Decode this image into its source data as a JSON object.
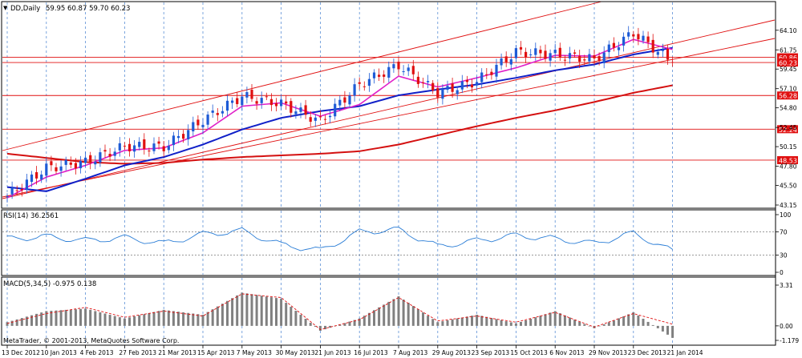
{
  "header": {
    "symbol_label": "DD,Daily",
    "ohlc_values": "59.95 60.87 59.70 60.23",
    "dropdown_glyph": "▼"
  },
  "rsi_panel": {
    "label": "RSI(14) 36.2561",
    "levels": [
      "100",
      "70",
      "30",
      "0"
    ]
  },
  "macd_panel": {
    "label": "MACD(5,34,5) -0.975 0.138",
    "levels": [
      "3.31",
      "0.00",
      "-1.179"
    ]
  },
  "copyright": "MetaTrader, © 2001-2013, MetaQuotes Software Corp.",
  "colors": {
    "background": "#ffffff",
    "grid_line": "#5b8fd6",
    "candle_up": "#1e5bd6",
    "candle_down": "#e01010",
    "ma_fast": "#e020c8",
    "ma_mid": "#1020c8",
    "ma_slow": "#d41010",
    "support_resistance": "#e01010",
    "rsi_line": "#2a7dd6",
    "macd_hist": "#808080",
    "macd_signal": "#e01010",
    "axis_text": "#000000",
    "price_tag_bg": "#e01010"
  },
  "chart_data": [
    {
      "type": "candlestick",
      "title": "DD,Daily",
      "x_tick_labels": [
        "13 Dec 2012",
        "10 Jan 2013",
        "4 Feb 2013",
        "27 Feb 2013",
        "21 Mar 2013",
        "15 Apr 2013",
        "7 May 2013",
        "30 May 2013",
        "21 Jun 2013",
        "16 Jul 2013",
        "7 Aug 2013",
        "29 Aug 2013",
        "23 Sep 2013",
        "15 Oct 2013",
        "6 Nov 2013",
        "29 Nov 2013",
        "23 Dec 2013",
        "21 Jan 2014"
      ],
      "y_tick_labels": [
        "64.10",
        "61.75",
        "59.45",
        "57.10",
        "54.80",
        "52.45",
        "50.15",
        "47.80",
        "45.50",
        "43.15"
      ],
      "ylim": [
        43.15,
        66.0
      ],
      "horizontal_levels": [
        "60.86",
        "60.23",
        "56.28",
        "52.24",
        "48.53"
      ],
      "current_price": "60.23",
      "series": [
        {
          "name": "price",
          "x": [
            "13 Dec 2012",
            "10 Jan 2013",
            "4 Feb 2013",
            "27 Feb 2013",
            "21 Mar 2013",
            "15 Apr 2013",
            "7 May 2013",
            "30 May 2013",
            "21 Jun 2013",
            "16 Jul 2013",
            "7 Aug 2013",
            "29 Aug 2013",
            "23 Sep 2013",
            "15 Oct 2013",
            "6 Nov 2013",
            "29 Nov 2013",
            "23 Dec 2013",
            "21 Jan 2014"
          ],
          "y": [
            44.2,
            47.6,
            48.3,
            50.2,
            50.1,
            53.3,
            56.2,
            55.3,
            53.2,
            57.6,
            59.9,
            56.6,
            58.0,
            61.5,
            61.2,
            60.6,
            63.8,
            60.23
          ]
        },
        {
          "name": "ma_fast",
          "x": [
            "13 Dec 2012",
            "10 Jan 2013",
            "4 Feb 2013",
            "27 Feb 2013",
            "21 Mar 2013",
            "15 Apr 2013",
            "7 May 2013",
            "30 May 2013",
            "21 Jun 2013",
            "16 Jul 2013",
            "7 Aug 2013",
            "29 Aug 2013",
            "23 Sep 2013",
            "15 Oct 2013",
            "6 Nov 2013",
            "29 Nov 2013",
            "23 Dec 2013",
            "21 Jan 2014"
          ],
          "y": [
            44.0,
            46.5,
            47.9,
            49.7,
            50.0,
            51.8,
            55.0,
            55.4,
            53.8,
            55.2,
            58.6,
            57.3,
            58.4,
            59.6,
            61.1,
            61.0,
            63.0,
            61.8
          ]
        },
        {
          "name": "ma_mid",
          "x": [
            "13 Dec 2012",
            "10 Jan 2013",
            "4 Feb 2013",
            "27 Feb 2013",
            "21 Mar 2013",
            "15 Apr 2013",
            "7 May 2013",
            "30 May 2013",
            "21 Jun 2013",
            "16 Jul 2013",
            "7 Aug 2013",
            "29 Aug 2013",
            "23 Sep 2013",
            "15 Oct 2013",
            "6 Nov 2013",
            "29 Nov 2013",
            "23 Dec 2013",
            "21 Jan 2014"
          ],
          "y": [
            45.3,
            44.8,
            46.3,
            47.9,
            48.9,
            50.4,
            52.2,
            53.6,
            54.4,
            55.0,
            56.3,
            57.0,
            57.6,
            58.4,
            59.3,
            60.0,
            61.2,
            62.0
          ]
        },
        {
          "name": "ma_slow",
          "x": [
            "13 Dec 2012",
            "10 Jan 2013",
            "4 Feb 2013",
            "27 Feb 2013",
            "21 Mar 2013",
            "15 Apr 2013",
            "7 May 2013",
            "30 May 2013",
            "21 Jun 2013",
            "16 Jul 2013",
            "7 Aug 2013",
            "29 Aug 2013",
            "23 Sep 2013",
            "15 Oct 2013",
            "6 Nov 2013",
            "29 Nov 2013",
            "23 Dec 2013",
            "21 Jan 2014"
          ],
          "y": [
            49.3,
            48.8,
            48.3,
            48.1,
            48.2,
            48.6,
            48.9,
            49.1,
            49.3,
            49.6,
            50.4,
            51.5,
            52.6,
            53.6,
            54.5,
            55.5,
            56.6,
            57.5
          ]
        }
      ]
    },
    {
      "type": "line",
      "title": "RSI(14) 36.2561",
      "x_tick_labels": [
        "13 Dec 2012",
        "10 Jan 2013",
        "4 Feb 2013",
        "27 Feb 2013",
        "21 Mar 2013",
        "15 Apr 2013",
        "7 May 2013",
        "30 May 2013",
        "21 Jun 2013",
        "16 Jul 2013",
        "7 Aug 2013",
        "29 Aug 2013",
        "23 Sep 2013",
        "15 Oct 2013",
        "6 Nov 2013",
        "29 Nov 2013",
        "23 Dec 2013",
        "21 Jan 2014"
      ],
      "y_tick_labels": [
        "100",
        "70",
        "30",
        "0"
      ],
      "ylim": [
        0,
        100
      ],
      "levels": [
        70,
        30
      ],
      "series": [
        {
          "name": "RSI(14)",
          "x": [
            "13 Dec 2012",
            "10 Jan 2013",
            "4 Feb 2013",
            "27 Feb 2013",
            "21 Mar 2013",
            "15 Apr 2013",
            "7 May 2013",
            "30 May 2013",
            "21 Jun 2013",
            "16 Jul 2013",
            "7 Aug 2013",
            "29 Aug 2013",
            "23 Sep 2013",
            "15 Oct 2013",
            "6 Nov 2013",
            "29 Nov 2013",
            "23 Dec 2013",
            "21 Jan 2014"
          ],
          "y": [
            58,
            62,
            55,
            60,
            50,
            66,
            72,
            48,
            38,
            70,
            74,
            45,
            55,
            64,
            58,
            50,
            68,
            36.26
          ]
        }
      ]
    },
    {
      "type": "bar",
      "title": "MACD(5,34,5) -0.975 0.138",
      "x_tick_labels": [
        "13 Dec 2012",
        "10 Jan 2013",
        "4 Feb 2013",
        "27 Feb 2013",
        "21 Mar 2013",
        "15 Apr 2013",
        "7 May 2013",
        "30 May 2013",
        "21 Jun 2013",
        "16 Jul 2013",
        "7 Aug 2013",
        "29 Aug 2013",
        "23 Sep 2013",
        "15 Oct 2013",
        "6 Nov 2013",
        "29 Nov 2013",
        "23 Dec 2013",
        "21 Jan 2014"
      ],
      "y_tick_labels": [
        "3.31",
        "0.00",
        "-1.179"
      ],
      "ylim": [
        -1.179,
        3.31
      ],
      "series": [
        {
          "name": "MACD",
          "x": [
            "13 Dec 2012",
            "10 Jan 2013",
            "4 Feb 2013",
            "27 Feb 2013",
            "21 Mar 2013",
            "15 Apr 2013",
            "7 May 2013",
            "30 May 2013",
            "21 Jun 2013",
            "16 Jul 2013",
            "7 Aug 2013",
            "29 Aug 2013",
            "23 Sep 2013",
            "15 Oct 2013",
            "6 Nov 2013",
            "29 Nov 2013",
            "23 Dec 2013",
            "21 Jan 2014"
          ],
          "y": [
            0.3,
            1.2,
            1.4,
            0.6,
            1.3,
            0.9,
            2.7,
            2.2,
            -0.4,
            0.6,
            2.4,
            0.3,
            0.9,
            0.2,
            1.2,
            -0.2,
            1.1,
            -0.975
          ]
        },
        {
          "name": "Signal",
          "x": [
            "13 Dec 2012",
            "10 Jan 2013",
            "4 Feb 2013",
            "27 Feb 2013",
            "21 Mar 2013",
            "15 Apr 2013",
            "7 May 2013",
            "30 May 2013",
            "21 Jun 2013",
            "16 Jul 2013",
            "7 Aug 2013",
            "29 Aug 2013",
            "23 Sep 2013",
            "15 Oct 2013",
            "6 Nov 2013",
            "29 Nov 2013",
            "23 Dec 2013",
            "21 Jan 2014"
          ],
          "y": [
            0.2,
            1.0,
            1.5,
            0.7,
            1.2,
            0.8,
            2.6,
            2.3,
            -0.3,
            0.5,
            2.3,
            0.4,
            0.8,
            0.3,
            1.1,
            -0.1,
            1.0,
            0.138
          ]
        }
      ]
    }
  ]
}
